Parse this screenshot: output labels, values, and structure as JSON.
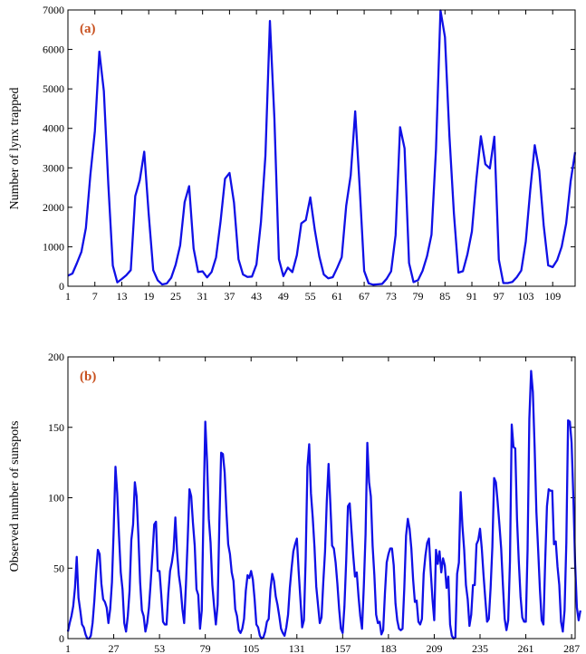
{
  "colors": {
    "series": "#1010e6",
    "panel_label": "#c8501e",
    "axis": "#000000"
  },
  "chart_data": [
    {
      "type": "line",
      "panel_label": "(a)",
      "title": "",
      "xlabel": "",
      "ylabel": "Number of lynx trapped",
      "xlim": [
        1,
        114
      ],
      "ylim": [
        0,
        7000
      ],
      "xticks": [
        1,
        7,
        13,
        19,
        25,
        31,
        37,
        43,
        49,
        55,
        61,
        67,
        73,
        79,
        85,
        91,
        97,
        103,
        109
      ],
      "yticks": [
        0,
        1000,
        2000,
        3000,
        4000,
        5000,
        6000,
        7000
      ],
      "grid": false,
      "legend": "none",
      "series": [
        {
          "values": [
            269,
            321,
            585,
            871,
            1475,
            2821,
            3928,
            5943,
            4950,
            2577,
            523,
            98,
            184,
            279,
            409,
            2285,
            2685,
            3409,
            1824,
            409,
            151,
            45,
            68,
            213,
            546,
            1033,
            2129,
            2536,
            957,
            361,
            377,
            225,
            360,
            731,
            1638,
            2725,
            2871,
            2119,
            684,
            299,
            236,
            245,
            552,
            1623,
            3311,
            6721,
            4254,
            687,
            255,
            473,
            358,
            784,
            1594,
            1676,
            2251,
            1426,
            756,
            299,
            201,
            229,
            469,
            736,
            2042,
            2811,
            4431,
            2511,
            389,
            73,
            39,
            49,
            59,
            188,
            377,
            1292,
            4031,
            3495,
            587,
            105,
            153,
            387,
            758,
            1307,
            3465,
            6991,
            6313,
            3794,
            1836,
            345,
            382,
            808,
            1388,
            2713,
            3800,
            3091,
            2985,
            3790,
            674,
            81,
            80,
            108,
            229,
            399,
            1132,
            2432,
            3574,
            2935,
            1537,
            529,
            485,
            662,
            1000,
            1590,
            2657,
            3396
          ]
        }
      ]
    },
    {
      "type": "line",
      "panel_label": "(b)",
      "title": "",
      "xlabel": "",
      "ylabel": "Observed number of sunspots",
      "xlim": [
        1,
        289
      ],
      "ylim": [
        0,
        200
      ],
      "xticks": [
        1,
        27,
        53,
        79,
        105,
        131,
        157,
        183,
        209,
        235,
        261,
        287
      ],
      "yticks": [
        0,
        50,
        100,
        150,
        200
      ],
      "grid": false,
      "legend": "none",
      "series": [
        {
          "values": [
            5,
            11,
            16,
            23,
            36,
            58,
            29,
            20,
            10,
            8,
            3,
            0,
            0,
            2,
            11,
            27,
            47,
            63,
            60,
            39,
            28,
            26,
            22,
            11,
            21,
            40,
            78,
            122,
            103,
            73,
            47,
            35,
            11,
            5,
            16,
            34,
            70,
            81,
            111,
            101,
            73,
            40,
            20,
            16,
            5,
            11,
            22,
            40,
            60,
            81,
            83,
            48,
            48,
            31,
            12,
            10,
            10,
            32,
            48,
            54,
            63,
            86,
            61,
            45,
            36,
            21,
            11,
            38,
            70,
            106,
            101,
            82,
            66,
            35,
            31,
            7,
            20,
            92,
            154,
            126,
            85,
            68,
            38,
            23,
            10,
            24,
            83,
            132,
            131,
            118,
            90,
            67,
            60,
            47,
            41,
            21,
            16,
            6,
            4,
            7,
            14,
            34,
            45,
            43,
            48,
            42,
            28,
            10,
            8,
            2,
            0,
            1,
            5,
            12,
            14,
            35,
            46,
            41,
            30,
            24,
            16,
            7,
            4,
            2,
            8,
            17,
            36,
            50,
            62,
            67,
            71,
            48,
            28,
            8,
            13,
            57,
            122,
            138,
            103,
            86,
            65,
            37,
            24,
            11,
            15,
            40,
            62,
            98,
            124,
            96,
            66,
            64,
            54,
            39,
            21,
            7,
            4,
            23,
            55,
            94,
            96,
            77,
            59,
            44,
            47,
            30,
            16,
            7,
            37,
            74,
            139,
            111,
            101,
            66,
            45,
            17,
            11,
            12,
            3,
            6,
            32,
            54,
            60,
            64,
            64,
            52,
            25,
            13,
            7,
            6,
            7,
            36,
            73,
            85,
            78,
            64,
            42,
            26,
            27,
            12,
            10,
            14,
            46,
            59,
            68,
            71,
            48,
            28,
            13,
            63,
            53,
            62,
            47,
            57,
            52,
            36,
            44,
            10,
            2,
            0,
            1,
            46,
            54,
            104,
            80,
            63,
            38,
            28,
            9,
            17,
            38,
            38,
            67,
            70,
            78,
            64,
            45,
            28,
            12,
            14,
            36,
            65,
            114,
            111,
            97,
            81,
            64,
            38,
            14,
            6,
            13,
            55,
            152,
            136,
            135,
            85,
            55,
            30,
            15,
            12,
            12,
            63,
            156,
            190,
            175,
            136,
            90,
            63,
            35,
            13,
            10,
            55,
            94,
            106,
            105,
            105,
            67,
            69,
            51,
            38,
            12,
            5,
            20,
            68,
            155,
            154,
            139,
            100,
            53,
            22,
            13,
            20
          ]
        }
      ]
    }
  ]
}
